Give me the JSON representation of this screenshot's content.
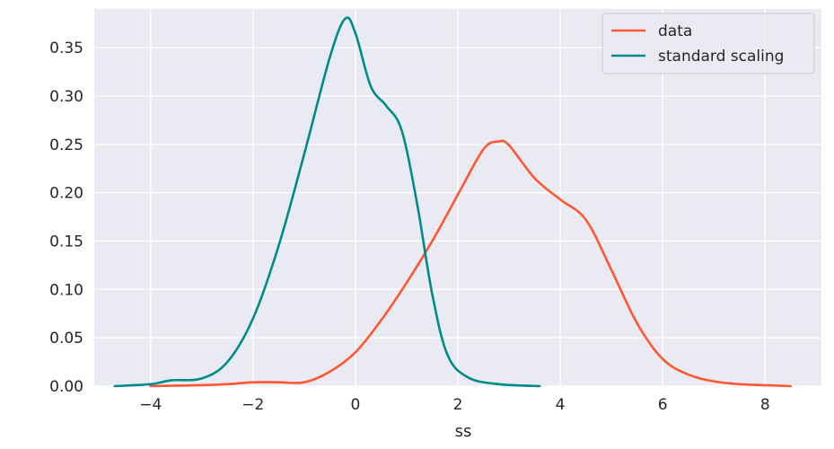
{
  "chart_data": {
    "type": "line",
    "title": "",
    "xlabel": "ss",
    "ylabel": "",
    "xlim": [
      -5.1,
      9.1
    ],
    "ylim": [
      0,
      0.39
    ],
    "xticks": [
      -4,
      -2,
      0,
      2,
      4,
      6,
      8
    ],
    "xtick_labels": [
      "−4",
      "−2",
      "0",
      "2",
      "4",
      "6",
      "8"
    ],
    "yticks": [
      0.0,
      0.05,
      0.1,
      0.15,
      0.2,
      0.25,
      0.3,
      0.35
    ],
    "ytick_labels": [
      "0.00",
      "0.05",
      "0.10",
      "0.15",
      "0.20",
      "0.25",
      "0.30",
      "0.35"
    ],
    "grid": true,
    "legend_position": "top-right",
    "background_color": "#eaeaf2",
    "series": [
      {
        "name": "data",
        "color": "#ff5733",
        "x": [
          -4.0,
          -3.0,
          -2.5,
          -2.0,
          -1.5,
          -1.0,
          -0.5,
          0.0,
          0.5,
          1.0,
          1.5,
          2.0,
          2.5,
          2.8,
          3.0,
          3.5,
          4.0,
          4.5,
          5.0,
          5.5,
          6.0,
          6.5,
          7.0,
          7.5,
          8.0,
          8.5
        ],
        "y": [
          0.0,
          0.001,
          0.002,
          0.004,
          0.004,
          0.004,
          0.015,
          0.035,
          0.068,
          0.107,
          0.15,
          0.198,
          0.245,
          0.253,
          0.249,
          0.215,
          0.193,
          0.172,
          0.12,
          0.065,
          0.028,
          0.012,
          0.005,
          0.002,
          0.001,
          0.0
        ]
      },
      {
        "name": "standard scaling",
        "color": "#008b8b",
        "x": [
          -4.7,
          -4.0,
          -3.6,
          -3.0,
          -2.5,
          -2.0,
          -1.5,
          -1.0,
          -0.5,
          -0.2,
          0.0,
          0.3,
          0.6,
          0.9,
          1.2,
          1.5,
          1.8,
          2.2,
          2.8,
          3.6
        ],
        "y": [
          0.0,
          0.002,
          0.006,
          0.008,
          0.025,
          0.07,
          0.145,
          0.24,
          0.34,
          0.38,
          0.365,
          0.31,
          0.29,
          0.265,
          0.19,
          0.095,
          0.032,
          0.009,
          0.002,
          0.0
        ]
      }
    ]
  }
}
